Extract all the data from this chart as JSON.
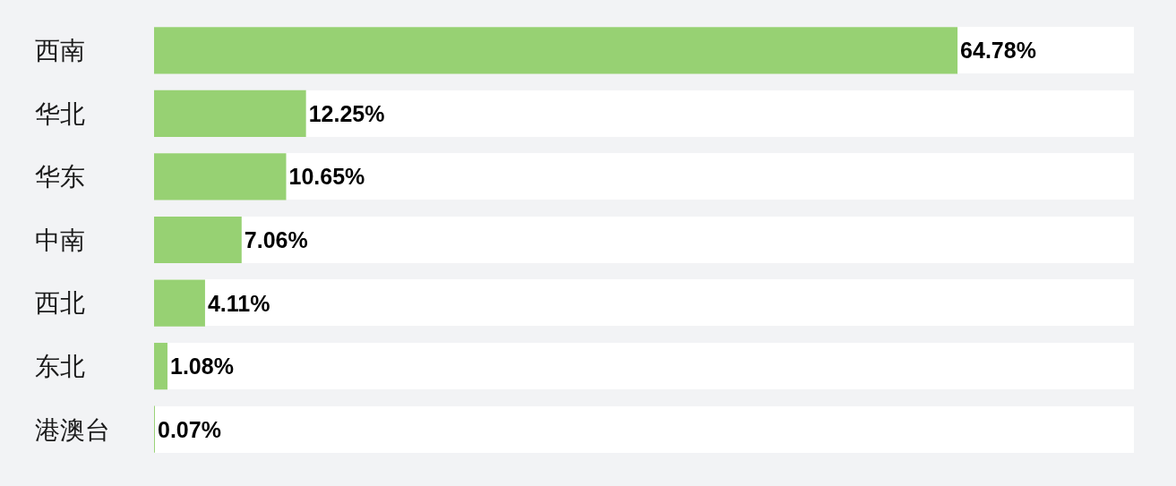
{
  "chart_data": {
    "type": "bar",
    "orientation": "horizontal",
    "categories": [
      "西南",
      "华北",
      "华东",
      "中南",
      "西北",
      "东北",
      "港澳台"
    ],
    "values": [
      64.78,
      12.25,
      10.65,
      7.06,
      4.11,
      1.08,
      0.07
    ],
    "value_labels": [
      "64.78%",
      "12.25%",
      "10.65%",
      "7.06%",
      "4.11%",
      "1.08%",
      "0.07%"
    ],
    "color": "#97d173",
    "tick_labels": "y"
  }
}
